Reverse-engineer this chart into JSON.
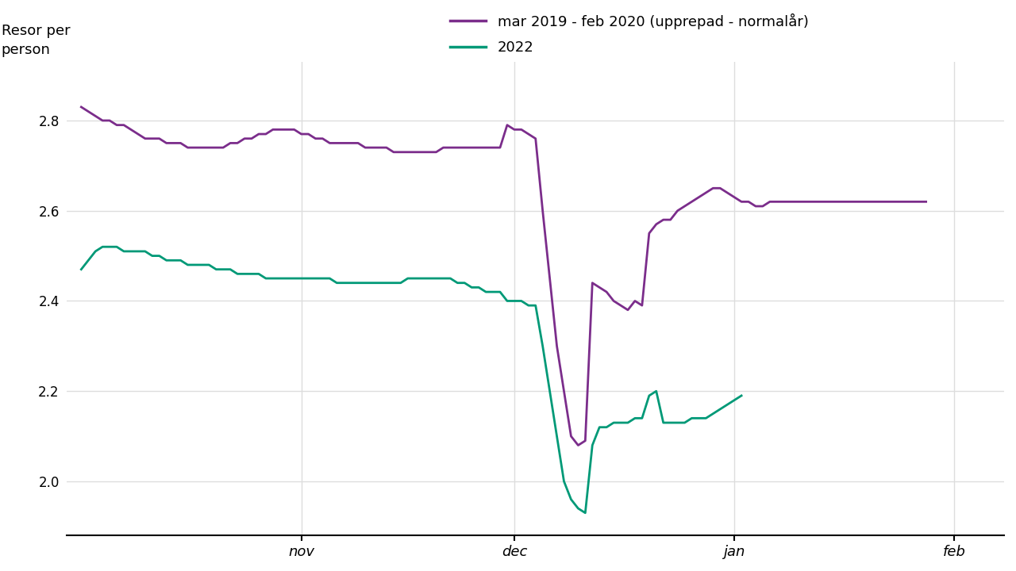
{
  "title": "",
  "ylabel": "Resor per\nperson",
  "background_color": "#ffffff",
  "grid_color": "#dddddd",
  "purple_color": "#7b2d8b",
  "teal_color": "#009977",
  "legend_label_purple": "mar 2019 - feb 2020 (upprepad - normalår)",
  "legend_label_teal": "2022",
  "ylim": [
    1.88,
    2.93
  ],
  "yticks": [
    2.0,
    2.2,
    2.4,
    2.6,
    2.8
  ],
  "xtick_labels": [
    "nov",
    "dec",
    "jan",
    "feb"
  ],
  "xtick_positions": [
    31,
    61,
    92,
    123
  ],
  "xlim": [
    -2,
    130
  ],
  "purple_x": [
    0,
    1,
    2,
    3,
    4,
    5,
    6,
    7,
    8,
    9,
    10,
    11,
    12,
    13,
    14,
    15,
    16,
    17,
    18,
    19,
    20,
    21,
    22,
    23,
    24,
    25,
    26,
    27,
    28,
    29,
    30,
    31,
    32,
    33,
    34,
    35,
    36,
    37,
    38,
    39,
    40,
    41,
    42,
    43,
    44,
    45,
    46,
    47,
    48,
    49,
    50,
    51,
    52,
    53,
    54,
    55,
    56,
    57,
    58,
    59,
    60,
    61,
    62,
    63,
    64,
    65,
    66,
    67,
    68,
    69,
    70,
    71,
    72,
    73,
    74,
    75,
    76,
    77,
    78,
    79,
    80,
    81,
    82,
    83,
    84,
    85,
    86,
    87,
    88,
    89,
    90,
    91,
    92,
    93,
    94,
    95,
    96,
    97,
    98,
    99,
    100,
    101,
    102,
    103,
    104,
    105,
    106,
    107,
    108,
    109,
    110,
    111,
    112,
    113,
    114,
    115,
    116,
    117,
    118,
    119
  ],
  "purple_y": [
    2.83,
    2.82,
    2.81,
    2.8,
    2.8,
    2.79,
    2.79,
    2.78,
    2.77,
    2.76,
    2.76,
    2.76,
    2.75,
    2.75,
    2.75,
    2.74,
    2.74,
    2.74,
    2.74,
    2.74,
    2.74,
    2.75,
    2.75,
    2.76,
    2.76,
    2.77,
    2.77,
    2.78,
    2.78,
    2.78,
    2.78,
    2.77,
    2.77,
    2.76,
    2.76,
    2.75,
    2.75,
    2.75,
    2.75,
    2.75,
    2.74,
    2.74,
    2.74,
    2.74,
    2.73,
    2.73,
    2.73,
    2.73,
    2.73,
    2.73,
    2.73,
    2.74,
    2.74,
    2.74,
    2.74,
    2.74,
    2.74,
    2.74,
    2.74,
    2.74,
    2.79,
    2.78,
    2.78,
    2.77,
    2.76,
    2.6,
    2.45,
    2.3,
    2.2,
    2.1,
    2.08,
    2.09,
    2.44,
    2.43,
    2.42,
    2.4,
    2.39,
    2.38,
    2.4,
    2.39,
    2.55,
    2.57,
    2.58,
    2.58,
    2.6,
    2.61,
    2.62,
    2.63,
    2.64,
    2.65,
    2.65,
    2.64,
    2.63,
    2.62,
    2.62,
    2.61,
    2.61,
    2.62,
    2.62,
    2.62,
    2.62,
    2.62,
    2.62,
    2.62,
    2.62,
    2.62,
    2.62,
    2.62,
    2.62,
    2.62,
    2.62,
    2.62,
    2.62,
    2.62,
    2.62,
    2.62,
    2.62,
    2.62,
    2.62,
    2.62
  ],
  "teal_x": [
    0,
    1,
    2,
    3,
    4,
    5,
    6,
    7,
    8,
    9,
    10,
    11,
    12,
    13,
    14,
    15,
    16,
    17,
    18,
    19,
    20,
    21,
    22,
    23,
    24,
    25,
    26,
    27,
    28,
    29,
    30,
    31,
    32,
    33,
    34,
    35,
    36,
    37,
    38,
    39,
    40,
    41,
    42,
    43,
    44,
    45,
    46,
    47,
    48,
    49,
    50,
    51,
    52,
    53,
    54,
    55,
    56,
    57,
    58,
    59,
    60,
    61,
    62,
    63,
    64,
    65,
    66,
    67,
    68,
    69,
    70,
    71,
    72,
    73,
    74,
    75,
    76,
    77,
    78,
    79,
    80,
    81,
    82,
    83,
    84,
    85,
    86,
    87,
    88,
    89,
    90,
    91,
    92,
    93
  ],
  "teal_y": [
    2.47,
    2.49,
    2.51,
    2.52,
    2.52,
    2.52,
    2.51,
    2.51,
    2.51,
    2.51,
    2.5,
    2.5,
    2.49,
    2.49,
    2.49,
    2.48,
    2.48,
    2.48,
    2.48,
    2.47,
    2.47,
    2.47,
    2.46,
    2.46,
    2.46,
    2.46,
    2.45,
    2.45,
    2.45,
    2.45,
    2.45,
    2.45,
    2.45,
    2.45,
    2.45,
    2.45,
    2.44,
    2.44,
    2.44,
    2.44,
    2.44,
    2.44,
    2.44,
    2.44,
    2.44,
    2.44,
    2.45,
    2.45,
    2.45,
    2.45,
    2.45,
    2.45,
    2.45,
    2.44,
    2.44,
    2.43,
    2.43,
    2.42,
    2.42,
    2.42,
    2.4,
    2.4,
    2.4,
    2.39,
    2.39,
    2.3,
    2.2,
    2.1,
    2.0,
    1.96,
    1.94,
    1.93,
    2.08,
    2.12,
    2.12,
    2.13,
    2.13,
    2.13,
    2.14,
    2.14,
    2.19,
    2.2,
    2.13,
    2.13,
    2.13,
    2.13,
    2.14,
    2.14,
    2.14,
    2.15,
    2.16,
    2.17,
    2.18,
    2.19
  ]
}
